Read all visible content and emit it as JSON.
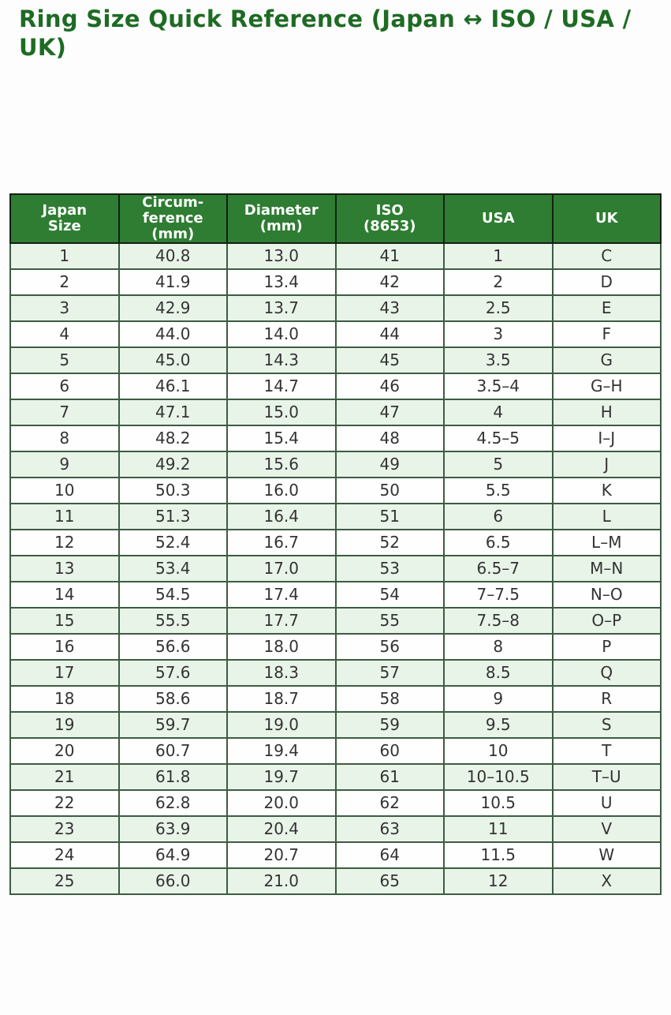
{
  "title": "Ring Size Quick Reference (Japan ↔ ISO / USA / UK)",
  "colors": {
    "header_bg": "#2e7d32",
    "header_text": "#ffffff",
    "title_text": "#1e6b24",
    "row_alt_bg": "#e9f4e9",
    "row_bg": "#fdfefd",
    "grid_border": "#3d5c42"
  },
  "chart_data": {
    "type": "table",
    "title": "Ring Size Quick Reference (Japan ↔ ISO / USA / UK)",
    "columns": [
      "Japan\nSize",
      "Circum-\nference\n(mm)",
      "Diameter\n(mm)",
      "ISO\n(8653)",
      "USA",
      "UK"
    ],
    "rows": [
      [
        "1",
        "40.8",
        "13.0",
        "41",
        "1",
        "C"
      ],
      [
        "2",
        "41.9",
        "13.4",
        "42",
        "2",
        "D"
      ],
      [
        "3",
        "42.9",
        "13.7",
        "43",
        "2.5",
        "E"
      ],
      [
        "4",
        "44.0",
        "14.0",
        "44",
        "3",
        "F"
      ],
      [
        "5",
        "45.0",
        "14.3",
        "45",
        "3.5",
        "G"
      ],
      [
        "6",
        "46.1",
        "14.7",
        "46",
        "3.5–4",
        "G–H"
      ],
      [
        "7",
        "47.1",
        "15.0",
        "47",
        "4",
        "H"
      ],
      [
        "8",
        "48.2",
        "15.4",
        "48",
        "4.5–5",
        "I–J"
      ],
      [
        "9",
        "49.2",
        "15.6",
        "49",
        "5",
        "J"
      ],
      [
        "10",
        "50.3",
        "16.0",
        "50",
        "5.5",
        "K"
      ],
      [
        "11",
        "51.3",
        "16.4",
        "51",
        "6",
        "L"
      ],
      [
        "12",
        "52.4",
        "16.7",
        "52",
        "6.5",
        "L–M"
      ],
      [
        "13",
        "53.4",
        "17.0",
        "53",
        "6.5–7",
        "M–N"
      ],
      [
        "14",
        "54.5",
        "17.4",
        "54",
        "7–7.5",
        "N–O"
      ],
      [
        "15",
        "55.5",
        "17.7",
        "55",
        "7.5–8",
        "O–P"
      ],
      [
        "16",
        "56.6",
        "18.0",
        "56",
        "8",
        "P"
      ],
      [
        "17",
        "57.6",
        "18.3",
        "57",
        "8.5",
        "Q"
      ],
      [
        "18",
        "58.6",
        "18.7",
        "58",
        "9",
        "R"
      ],
      [
        "19",
        "59.7",
        "19.0",
        "59",
        "9.5",
        "S"
      ],
      [
        "20",
        "60.7",
        "19.4",
        "60",
        "10",
        "T"
      ],
      [
        "21",
        "61.8",
        "19.7",
        "61",
        "10–10.5",
        "T–U"
      ],
      [
        "22",
        "62.8",
        "20.0",
        "62",
        "10.5",
        "U"
      ],
      [
        "23",
        "63.9",
        "20.4",
        "63",
        "11",
        "V"
      ],
      [
        "24",
        "64.9",
        "20.7",
        "64",
        "11.5",
        "W"
      ],
      [
        "25",
        "66.0",
        "21.0",
        "65",
        "12",
        "X"
      ]
    ]
  }
}
